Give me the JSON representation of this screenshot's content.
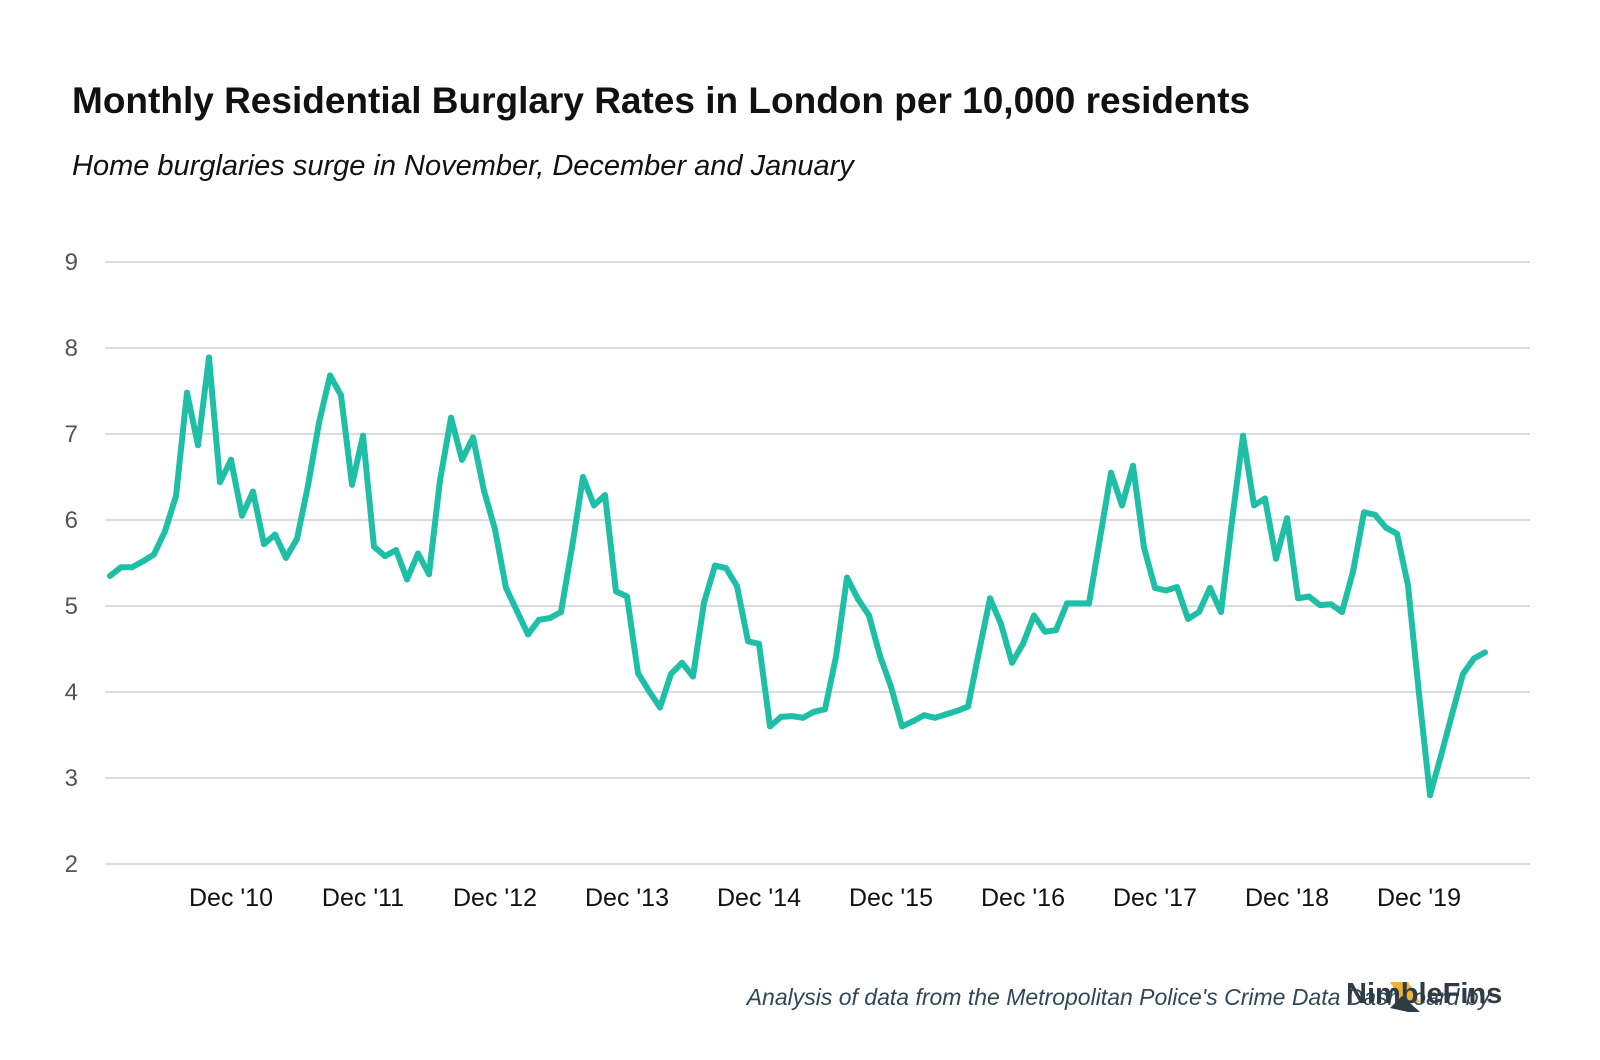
{
  "chart_data": {
    "type": "line",
    "title": "Monthly Residential Burglary Rates in London per 10,000 residents",
    "subtitle": "Home burglaries surge in November, December and January",
    "ylim": [
      2,
      9
    ],
    "yticks": [
      2,
      3,
      4,
      5,
      6,
      7,
      8,
      9
    ],
    "grid": true,
    "x_labels": [
      {
        "label": "Dec '10",
        "index": 11
      },
      {
        "label": "Dec '11",
        "index": 23
      },
      {
        "label": "Dec '12",
        "index": 35
      },
      {
        "label": "Dec '13",
        "index": 47
      },
      {
        "label": "Dec '14",
        "index": 59
      },
      {
        "label": "Dec '15",
        "index": 71
      },
      {
        "label": "Dec '16",
        "index": 83
      },
      {
        "label": "Dec '17",
        "index": 95
      },
      {
        "label": "Dec '18",
        "index": 107
      },
      {
        "label": "Dec '19",
        "index": 119
      }
    ],
    "series": [
      {
        "color": "#1fbfa7",
        "values": [
          5.35,
          5.45,
          5.45,
          5.52,
          5.6,
          5.87,
          6.28,
          7.48,
          6.87,
          7.89,
          6.44,
          6.7,
          6.05,
          6.33,
          5.72,
          5.83,
          5.56,
          5.78,
          6.4,
          7.13,
          7.68,
          7.45,
          6.41,
          6.98,
          5.69,
          5.58,
          5.65,
          5.31,
          5.61,
          5.37,
          6.46,
          7.19,
          6.7,
          6.96,
          6.34,
          5.89,
          5.21,
          4.94,
          4.67,
          4.84,
          4.86,
          4.93,
          5.68,
          6.5,
          6.17,
          6.29,
          5.17,
          5.11,
          4.22,
          4.01,
          3.82,
          4.21,
          4.34,
          4.18,
          5.04,
          5.47,
          5.44,
          5.23,
          4.59,
          4.56,
          3.6,
          3.71,
          3.72,
          3.7,
          3.77,
          3.8,
          4.41,
          5.33,
          5.08,
          4.89,
          4.42,
          4.06,
          3.6,
          3.66,
          3.73,
          3.7,
          3.74,
          3.78,
          3.83,
          4.47,
          5.09,
          4.79,
          4.34,
          4.56,
          4.89,
          4.7,
          4.72,
          5.03,
          5.03,
          5.03,
          5.79,
          6.55,
          6.17,
          6.63,
          5.68,
          5.21,
          5.18,
          5.22,
          4.85,
          4.93,
          5.21,
          4.93,
          5.99,
          6.98,
          6.17,
          6.25,
          5.55,
          6.02,
          5.09,
          5.11,
          5.01,
          5.02,
          4.93,
          5.4,
          6.09,
          6.06,
          5.91,
          5.84,
          5.24,
          3.98,
          2.8,
          3.26,
          3.74,
          4.21,
          4.39,
          4.46
        ]
      }
    ]
  },
  "footer": {
    "text": "Analysis of data from the Metropolitan Police's Crime Data Dashboard by",
    "brand": "NimbleFins"
  }
}
